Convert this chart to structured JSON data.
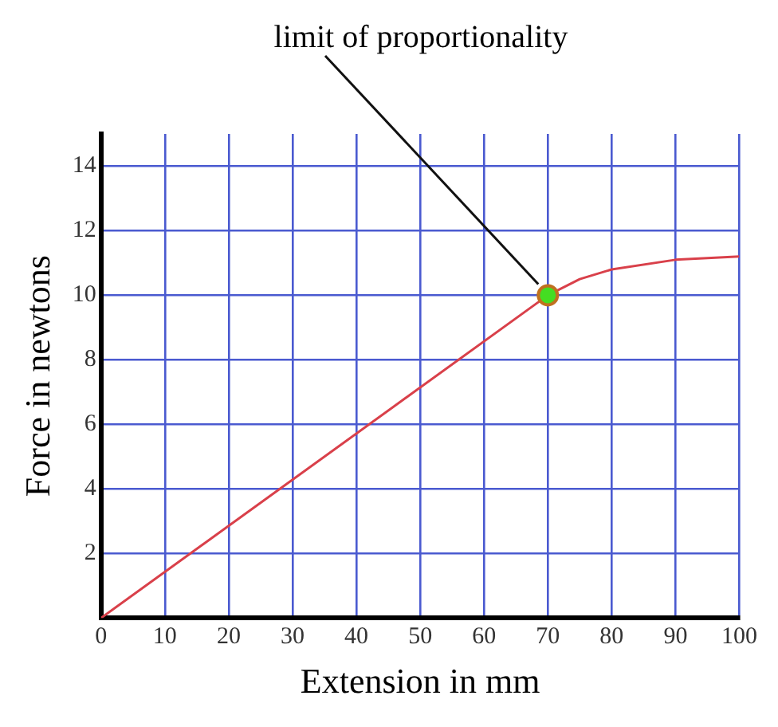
{
  "chart_data": {
    "type": "line",
    "xlabel": "Extension in mm",
    "ylabel": "Force in newtons",
    "x": [
      0,
      70,
      75,
      80,
      90,
      100
    ],
    "series": [
      {
        "type": "line",
        "color": "#d9404a",
        "values": [
          0,
          10,
          10.5,
          10.8,
          11.1,
          11.2
        ],
        "marker": "none"
      },
      {
        "type": "scatter",
        "color": "#44dd22",
        "x": [
          70
        ],
        "values": [
          10
        ],
        "marker": "circle"
      }
    ],
    "annotations": [
      "limit of proportionality"
    ],
    "xlim": [
      0,
      100
    ],
    "xticks": [
      0,
      10,
      20,
      30,
      40,
      50,
      60,
      70,
      80,
      90,
      100
    ],
    "ylim": [
      0,
      15
    ],
    "yticks": [
      2,
      4,
      6,
      8,
      10,
      12,
      14
    ],
    "grid": true,
    "legend": false
  }
}
